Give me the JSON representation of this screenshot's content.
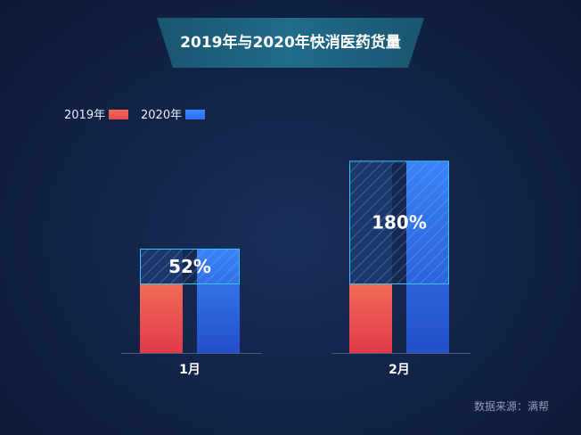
{
  "title": "2019年与2020年快消医药货量",
  "legend": [
    {
      "label": "2019年",
      "color": "#e84a4f"
    },
    {
      "label": "2020年",
      "color": "#2f6ff0"
    }
  ],
  "source": "数据来源：满帮",
  "colors": {
    "series_2019": "#e84a4f",
    "series_2020": "#2f6ff0",
    "growth_box_border": "#39c3ff",
    "accent": "#1f6b8a"
  },
  "chart_data": {
    "type": "bar",
    "title": "2019年与2020年快消医药货量",
    "categories": [
      "1月",
      "2月"
    ],
    "series": [
      {
        "name": "2019年",
        "values": [
          1.0,
          1.0
        ]
      },
      {
        "name": "2020年",
        "values": [
          1.52,
          2.8
        ]
      }
    ],
    "annotations": [
      {
        "category": "1月",
        "label": "52%"
      },
      {
        "category": "2月",
        "label": "180%"
      }
    ],
    "grid": false,
    "legend_position": "top-left"
  }
}
